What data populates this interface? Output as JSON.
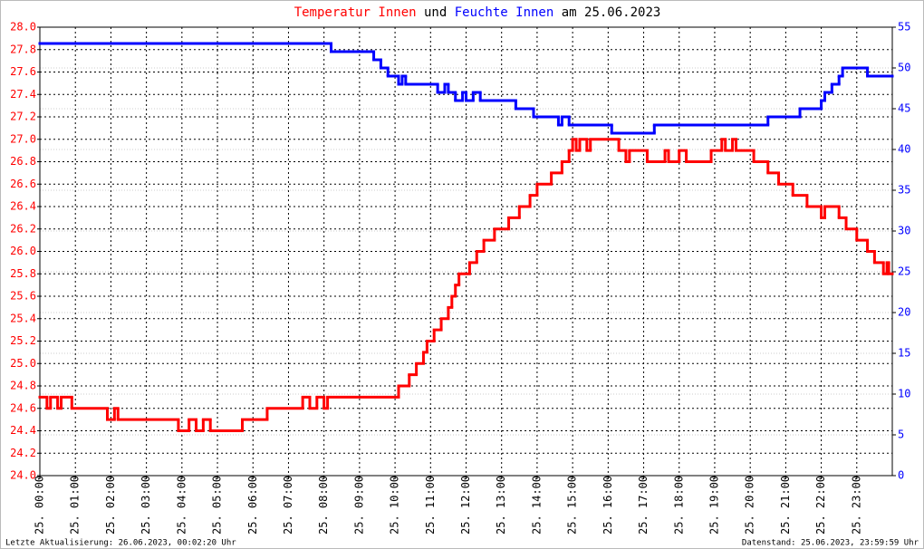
{
  "chart_data": {
    "type": "line",
    "step": true,
    "title_parts": [
      "und",
      "am 25.06.2023"
    ],
    "footer_left": "Letzte Aktualisierung: 26.06.2023, 00:02:20 Uhr",
    "footer_right": "Datenstand: 25.06.2023, 23:59:59 Uhr",
    "xlim": [
      0,
      24
    ],
    "xticks": [
      {
        "value": 0,
        "label": "25. 00:00"
      },
      {
        "value": 1,
        "label": "25. 01:00"
      },
      {
        "value": 2,
        "label": "25. 02:00"
      },
      {
        "value": 3,
        "label": "25. 03:00"
      },
      {
        "value": 4,
        "label": "25. 04:00"
      },
      {
        "value": 5,
        "label": "25. 05:00"
      },
      {
        "value": 6,
        "label": "25. 06:00"
      },
      {
        "value": 7,
        "label": "25. 07:00"
      },
      {
        "value": 8,
        "label": "25. 08:00"
      },
      {
        "value": 9,
        "label": "25. 09:00"
      },
      {
        "value": 10,
        "label": "25. 10:00"
      },
      {
        "value": 11,
        "label": "25. 11:00"
      },
      {
        "value": 12,
        "label": "25. 12:00"
      },
      {
        "value": 13,
        "label": "25. 13:00"
      },
      {
        "value": 14,
        "label": "25. 14:00"
      },
      {
        "value": 15,
        "label": "25. 15:00"
      },
      {
        "value": 16,
        "label": "25. 16:00"
      },
      {
        "value": 17,
        "label": "25. 17:00"
      },
      {
        "value": 18,
        "label": "25. 18:00"
      },
      {
        "value": 19,
        "label": "25. 19:00"
      },
      {
        "value": 20,
        "label": "25. 20:00"
      },
      {
        "value": 21,
        "label": "25. 21:00"
      },
      {
        "value": 22,
        "label": "25. 22:00"
      },
      {
        "value": 23,
        "label": "25. 23:00"
      }
    ],
    "ylim": [
      24,
      28
    ],
    "yticks": [
      {
        "value": 24,
        "label": "24.0"
      },
      {
        "value": 24.2,
        "label": "24.2"
      },
      {
        "value": 24.4,
        "label": "24.4"
      },
      {
        "value": 24.6,
        "label": "24.6"
      },
      {
        "value": 24.8,
        "label": "24.8"
      },
      {
        "value": 25,
        "label": "25.0"
      },
      {
        "value": 25.2,
        "label": "25.2"
      },
      {
        "value": 25.4,
        "label": "25.4"
      },
      {
        "value": 25.6,
        "label": "25.6"
      },
      {
        "value": 25.8,
        "label": "25.8"
      },
      {
        "value": 26,
        "label": "26.0"
      },
      {
        "value": 26.2,
        "label": "26.2"
      },
      {
        "value": 26.4,
        "label": "26.4"
      },
      {
        "value": 26.6,
        "label": "26.6"
      },
      {
        "value": 26.8,
        "label": "26.8"
      },
      {
        "value": 27,
        "label": "27.0"
      },
      {
        "value": 27.2,
        "label": "27.2"
      },
      {
        "value": 27.4,
        "label": "27.4"
      },
      {
        "value": 27.6,
        "label": "27.6"
      },
      {
        "value": 27.8,
        "label": "27.8"
      },
      {
        "value": 28,
        "label": "28.0"
      }
    ],
    "y2lim": [
      0,
      55
    ],
    "y2ticks": [
      0,
      5,
      10,
      15,
      20,
      25,
      30,
      35,
      40,
      45,
      50,
      55
    ],
    "grid": true,
    "series": [
      {
        "name": "Temperatur Innen",
        "color": "#ff0000",
        "x": [
          0,
          0.2,
          0.3,
          0.5,
          0.6,
          0.9,
          1.9,
          2.1,
          2.2,
          3.9,
          4.2,
          4.4,
          4.6,
          4.8,
          5.7,
          6.4,
          7.4,
          7.6,
          7.8,
          8.0,
          8.1,
          10.1,
          10.4,
          10.6,
          10.8,
          10.9,
          11.1,
          11.3,
          11.5,
          11.6,
          11.7,
          11.8,
          12.1,
          12.3,
          12.5,
          12.8,
          13.2,
          13.5,
          13.8,
          14.0,
          14.4,
          14.7,
          14.9,
          15.0,
          15.1,
          15.2,
          15.4,
          15.5,
          16.3,
          16.5,
          16.6,
          17.1,
          17.6,
          17.7,
          18.0,
          18.2,
          18.9,
          19.2,
          19.3,
          19.5,
          19.6,
          20.1,
          20.5,
          20.8,
          21.2,
          21.6,
          22.0,
          22.1,
          22.5,
          22.7,
          23.0,
          23.3,
          23.5,
          23.75,
          23.85,
          23.9
        ],
        "values": [
          24.7,
          24.6,
          24.7,
          24.6,
          24.7,
          24.6,
          24.5,
          24.6,
          24.5,
          24.4,
          24.5,
          24.4,
          24.5,
          24.4,
          24.5,
          24.6,
          24.7,
          24.6,
          24.7,
          24.6,
          24.7,
          24.8,
          24.9,
          25.0,
          25.1,
          25.2,
          25.3,
          25.4,
          25.5,
          25.6,
          25.7,
          25.8,
          25.9,
          26.0,
          26.1,
          26.2,
          26.3,
          26.4,
          26.5,
          26.6,
          26.7,
          26.8,
          26.9,
          27.0,
          26.9,
          27.0,
          26.9,
          27.0,
          26.9,
          26.8,
          26.9,
          26.8,
          26.9,
          26.8,
          26.9,
          26.8,
          26.9,
          27.0,
          26.9,
          27.0,
          26.9,
          26.8,
          26.7,
          26.6,
          26.5,
          26.4,
          26.3,
          26.4,
          26.3,
          26.2,
          26.1,
          26.0,
          25.9,
          25.8,
          25.9,
          25.8
        ]
      },
      {
        "name": "Feuchte Innen",
        "color": "#0000ff",
        "axis": "y2",
        "x": [
          0,
          8.2,
          9.4,
          9.6,
          9.8,
          10.1,
          10.2,
          10.3,
          11.2,
          11.4,
          11.5,
          11.7,
          11.9,
          12.0,
          12.2,
          12.4,
          13.4,
          13.9,
          14.6,
          14.7,
          14.9,
          16.1,
          17.3,
          20.5,
          21.4,
          22.0,
          22.1,
          22.3,
          22.5,
          22.6,
          23.3
        ],
        "values": [
          53,
          52,
          51,
          50,
          49,
          48,
          49,
          48,
          47,
          48,
          47,
          46,
          47,
          46,
          47,
          46,
          45,
          44,
          43,
          44,
          43,
          42,
          43,
          44,
          45,
          46,
          47,
          48,
          49,
          50,
          49
        ]
      }
    ]
  }
}
